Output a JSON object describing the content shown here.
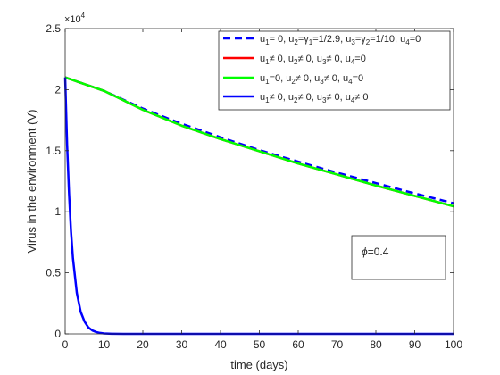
{
  "chart_data": {
    "type": "line",
    "xlabel": "time (days)",
    "ylabel": "Virus in the environment (V)",
    "exponent_label": "×10",
    "exponent_power": "4",
    "xlim": [
      0,
      100
    ],
    "ylim": [
      0,
      25000
    ],
    "x_ticks": [
      0,
      10,
      20,
      30,
      40,
      50,
      60,
      70,
      80,
      90,
      100
    ],
    "x_tick_labels": [
      "0",
      "10",
      "20",
      "30",
      "40",
      "50",
      "60",
      "70",
      "80",
      "90",
      "100"
    ],
    "y_ticks": [
      0,
      5000,
      10000,
      15000,
      20000,
      25000
    ],
    "y_tick_labels": [
      "0",
      "0.5",
      "1",
      "1.5",
      "2",
      "2.5"
    ],
    "grid": false,
    "legend_position": "top-right",
    "annotation": {
      "symbol": "ϕ",
      "text": "=0.4"
    },
    "series": [
      {
        "legend": [
          {
            "t": "u"
          },
          {
            "t": "1",
            "s": "sub"
          },
          {
            "t": "= 0, u"
          },
          {
            "t": "2",
            "s": "sub"
          },
          {
            "t": "=γ"
          },
          {
            "t": "1",
            "s": "sub"
          },
          {
            "t": "=1/2.9, u"
          },
          {
            "t": "3",
            "s": "sub"
          },
          {
            "t": "=γ"
          },
          {
            "t": "2",
            "s": "sub"
          },
          {
            "t": "=1/10, u"
          },
          {
            "t": "4",
            "s": "sub"
          },
          {
            "t": "=0"
          }
        ],
        "color": "#0000ff",
        "dash": "dashed",
        "x": [
          0,
          10,
          20,
          30,
          40,
          50,
          60,
          70,
          80,
          90,
          100
        ],
        "values": [
          21000,
          19900,
          18450,
          17200,
          16100,
          15050,
          14100,
          13200,
          12350,
          11500,
          10700
        ]
      },
      {
        "legend": [
          {
            "t": "u"
          },
          {
            "t": "1",
            "s": "sub"
          },
          {
            "t": "≠ 0, u"
          },
          {
            "t": "2",
            "s": "sub"
          },
          {
            "t": "≠ 0, u"
          },
          {
            "t": "3",
            "s": "sub"
          },
          {
            "t": "≠ 0, u"
          },
          {
            "t": "4",
            "s": "sub"
          },
          {
            "t": "=0"
          }
        ],
        "color": "#ff0000",
        "dash": "solid",
        "x": [
          0,
          10,
          20,
          30,
          40,
          50,
          60,
          70,
          80,
          90,
          100
        ],
        "values": [
          21000,
          19900,
          18350,
          17050,
          15950,
          14950,
          13950,
          13050,
          12150,
          11300,
          10450
        ]
      },
      {
        "legend": [
          {
            "t": "u"
          },
          {
            "t": "1",
            "s": "sub"
          },
          {
            "t": "=0, u"
          },
          {
            "t": "2",
            "s": "sub"
          },
          {
            "t": "≠ 0, u"
          },
          {
            "t": "3",
            "s": "sub"
          },
          {
            "t": "≠ 0, u"
          },
          {
            "t": "4",
            "s": "sub"
          },
          {
            "t": "=0"
          }
        ],
        "color": "#00ff00",
        "dash": "solid",
        "x": [
          0,
          10,
          20,
          30,
          40,
          50,
          60,
          70,
          80,
          90,
          100
        ],
        "values": [
          21000,
          19900,
          18350,
          17050,
          15950,
          14950,
          13950,
          13050,
          12150,
          11300,
          10450
        ]
      },
      {
        "legend": [
          {
            "t": "u"
          },
          {
            "t": "1",
            "s": "sub"
          },
          {
            "t": "≠ 0, u"
          },
          {
            "t": "2",
            "s": "sub"
          },
          {
            "t": "≠ 0, u"
          },
          {
            "t": "3",
            "s": "sub"
          },
          {
            "t": "≠ 0, u"
          },
          {
            "t": "4",
            "s": "sub"
          },
          {
            "t": "≠ 0"
          }
        ],
        "color": "#0000ff",
        "dash": "solid",
        "x": [
          0,
          0.5,
          1,
          1.5,
          2,
          3,
          4,
          5,
          6,
          7,
          8,
          9,
          10,
          12,
          15,
          20,
          30,
          50,
          100
        ],
        "values": [
          21000,
          15500,
          11500,
          8400,
          6200,
          3350,
          1800,
          1000,
          520,
          280,
          150,
          80,
          40,
          10,
          0,
          0,
          0,
          0,
          0
        ]
      }
    ]
  }
}
